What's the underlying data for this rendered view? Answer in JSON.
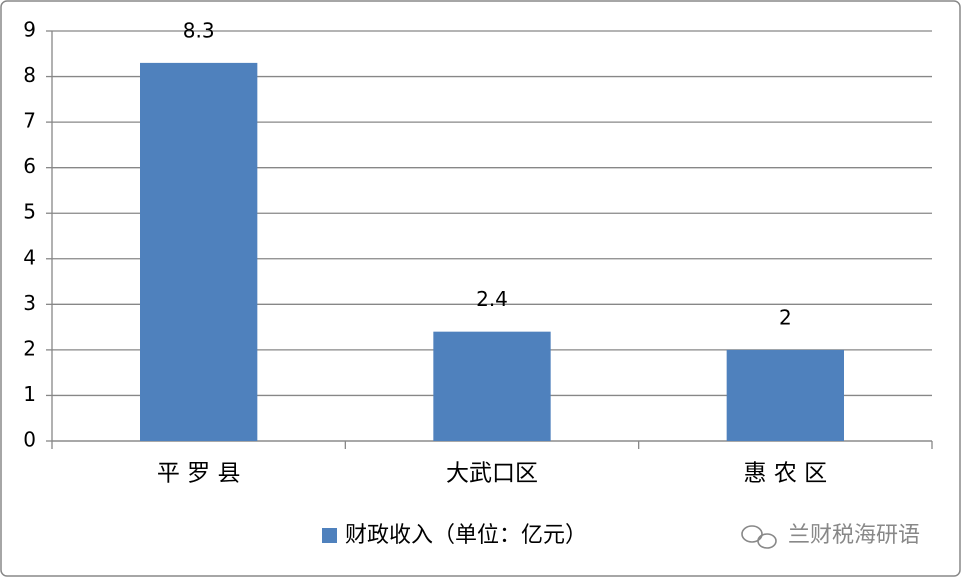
{
  "chart_data": {
    "type": "bar",
    "categories": [
      "平 罗 县",
      "大武口区",
      "惠 农 区"
    ],
    "series": [
      {
        "name": "财政收入（单位：亿元）",
        "color": "#4f81bd",
        "values": [
          8.3,
          2.4,
          2
        ]
      }
    ],
    "ylim": [
      0,
      9
    ],
    "yticks": [
      0,
      1,
      2,
      3,
      4,
      5,
      6,
      7,
      8,
      9
    ],
    "grid": true,
    "legend": "bottom",
    "annotation": "兰财税海研语"
  }
}
